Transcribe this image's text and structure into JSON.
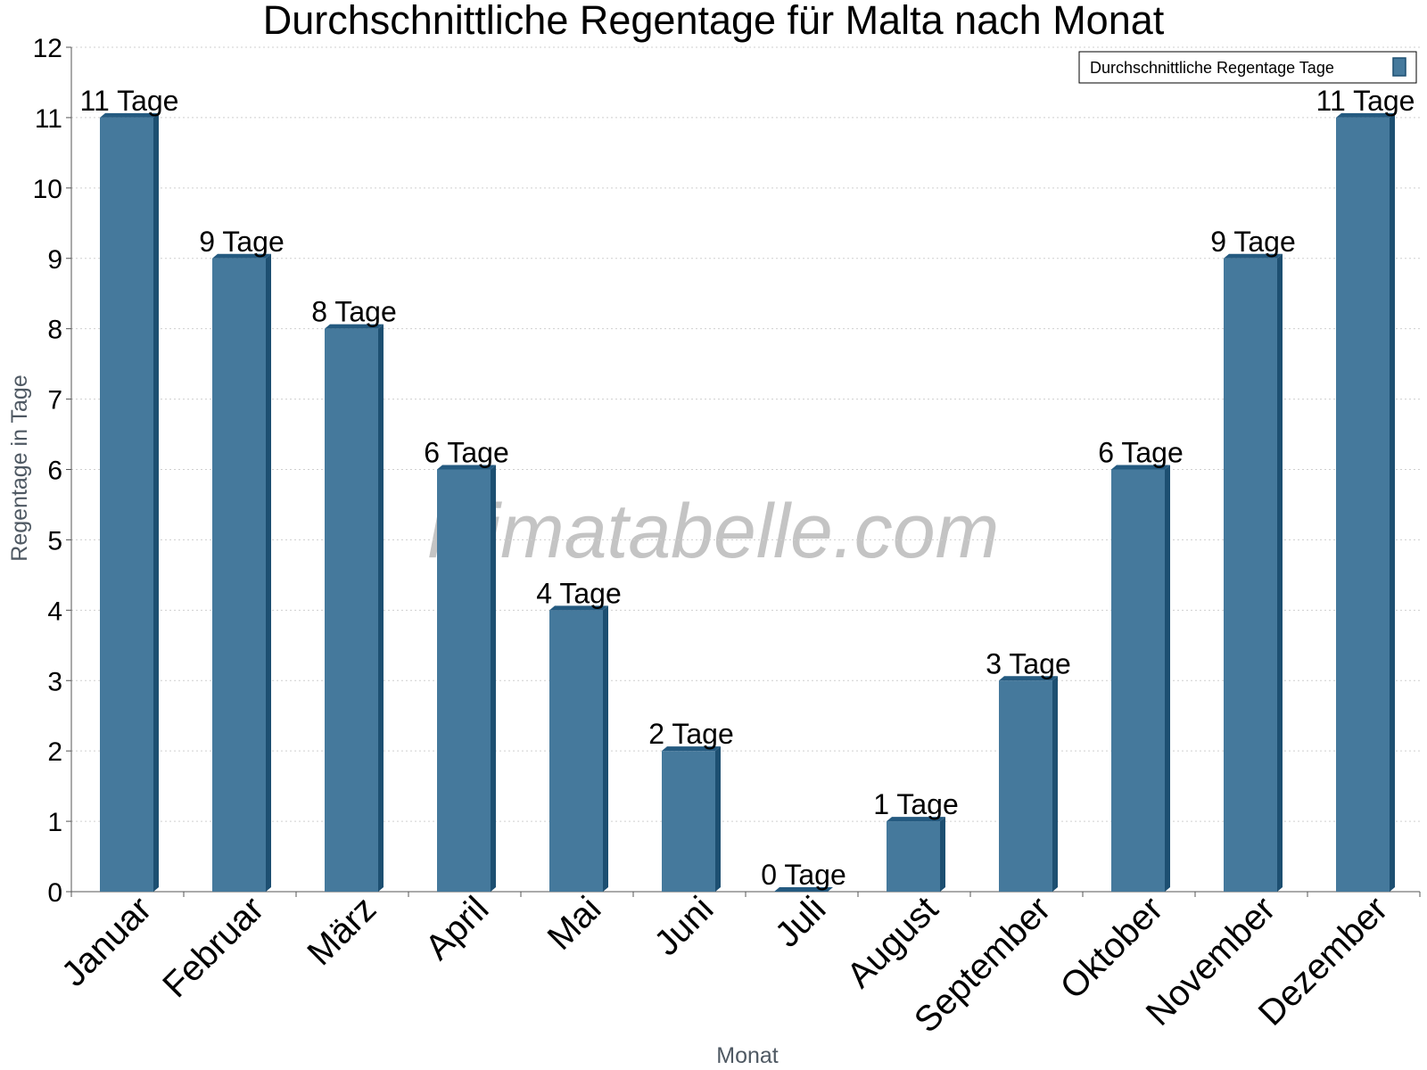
{
  "chart_data": {
    "type": "bar",
    "title": "Durchschnittliche Regentage für Malta nach Monat",
    "xlabel": "Monat",
    "ylabel": "Regentage in Tage",
    "ylim": [
      0,
      12
    ],
    "yticks": [
      0,
      1,
      2,
      3,
      4,
      5,
      6,
      7,
      8,
      9,
      10,
      11,
      12
    ],
    "grid": true,
    "legend_position": "top-right",
    "categories": [
      "Januar",
      "Februar",
      "März",
      "April",
      "Mai",
      "Juni",
      "Juli",
      "August",
      "September",
      "Oktober",
      "November",
      "Dezember"
    ],
    "series": [
      {
        "name": "Durchschnittliche Regentage Tage",
        "values": [
          11,
          9,
          8,
          6,
          4,
          2,
          0,
          1,
          3,
          6,
          9,
          11
        ],
        "data_labels": [
          "11 Tage",
          "9 Tage",
          "8 Tage",
          "6 Tage",
          "4 Tage",
          "2 Tage",
          "0 Tage",
          "1 Tage",
          "3 Tage",
          "6 Tage",
          "9 Tage",
          "11 Tage"
        ]
      }
    ],
    "watermark": "klimatabelle.com",
    "colors": {
      "bar_face": "#45799c",
      "bar_side": "#1d4f71",
      "bar_top": "#245a80",
      "grid": "#cfcfcf",
      "axis": "#555555"
    }
  }
}
